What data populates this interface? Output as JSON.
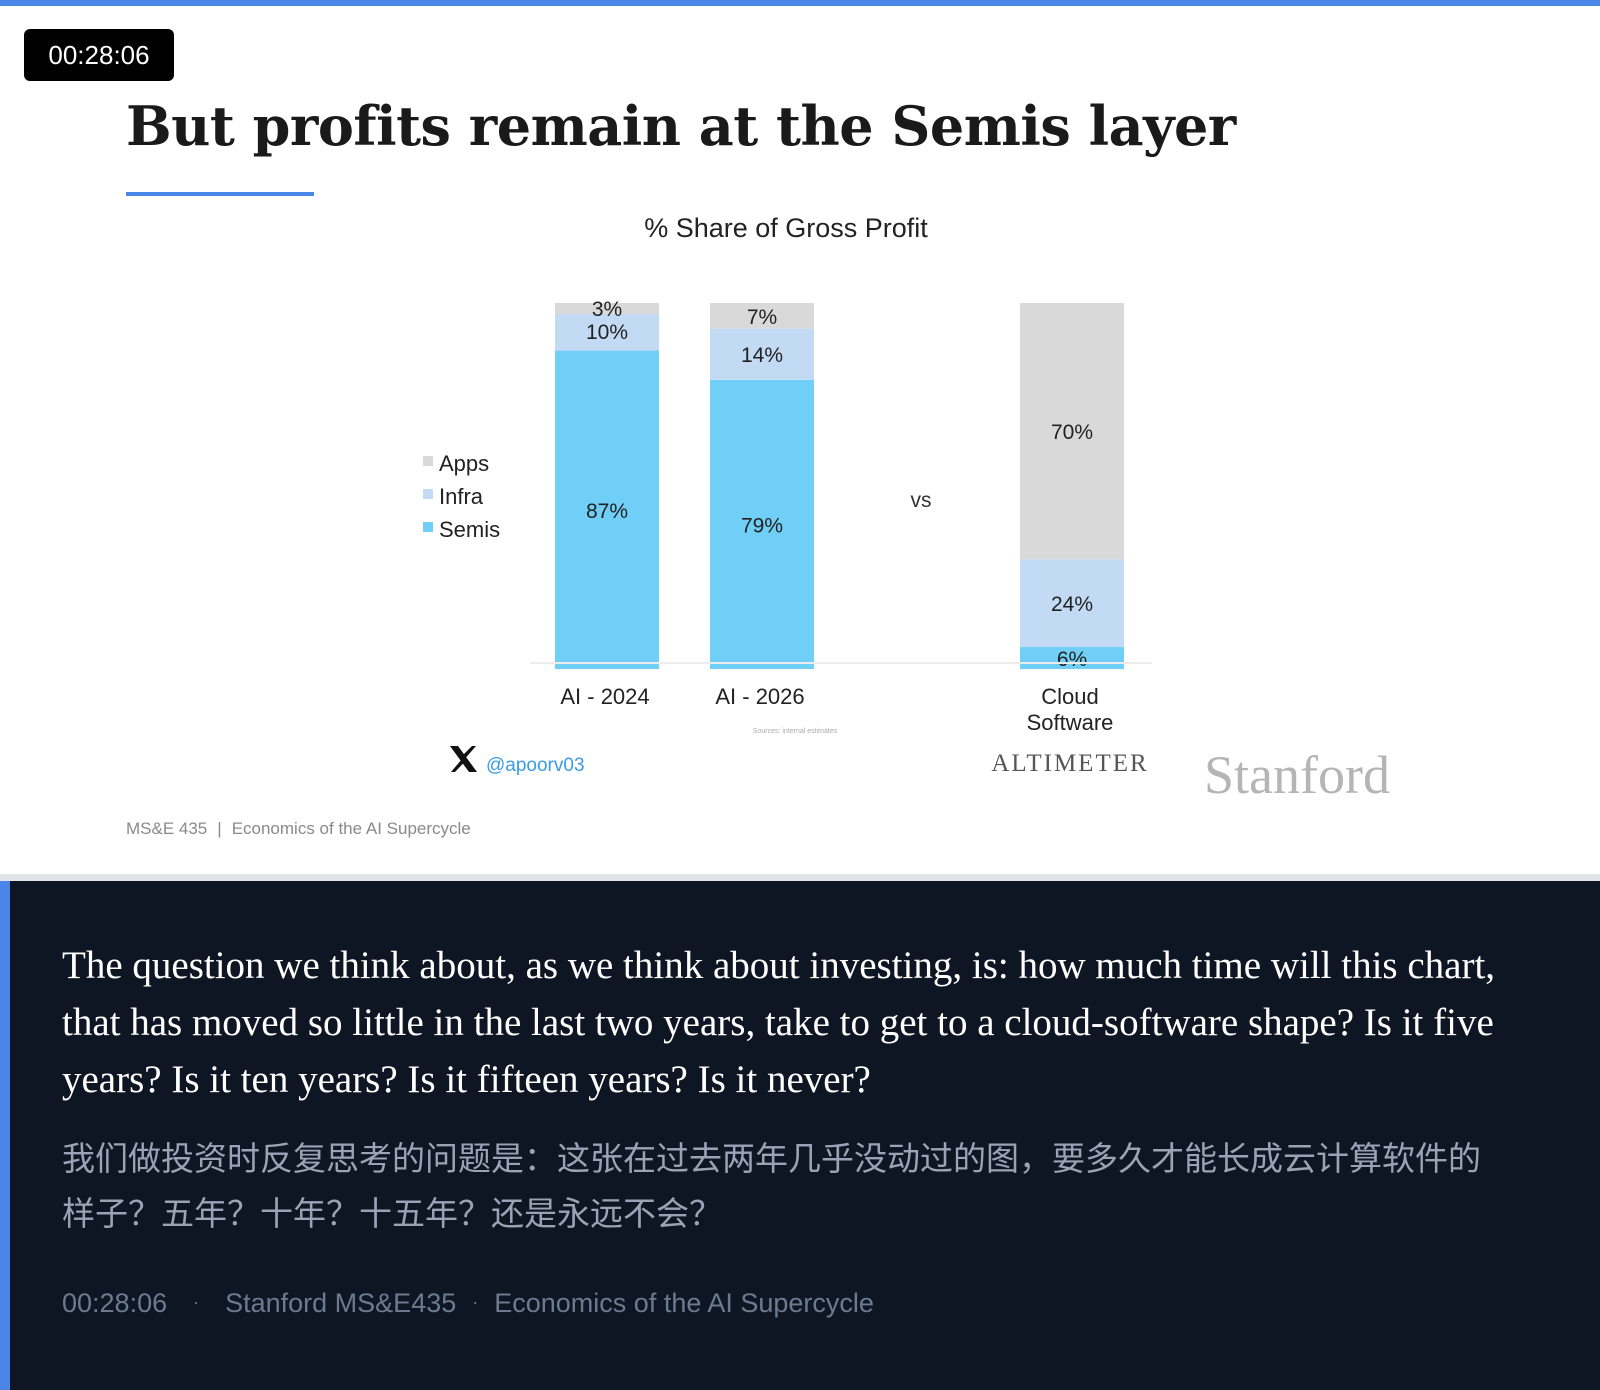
{
  "timestamp": "00:28:06",
  "slide": {
    "title": "But profits remain at the Semis layer",
    "stanford_logo": "Stanford",
    "course_code": "MS&E 435",
    "footer_separator": "|",
    "course_name": "Economics of the AI Supercycle"
  },
  "colors": {
    "accent": "#4a86e8",
    "semis": "#6fcff6",
    "infra": "#c3daf4",
    "apps": "#d9d9d9",
    "caption_bg": "#0f1623"
  },
  "chart_data": {
    "type": "bar",
    "stacked": true,
    "title": "% Share of Gross Profit",
    "categories": [
      "AI - 2024",
      "AI - 2026",
      "Cloud Software"
    ],
    "series": [
      {
        "name": "Semis",
        "values": [
          87,
          79,
          6
        ]
      },
      {
        "name": "Infra",
        "values": [
          10,
          14,
          24
        ]
      },
      {
        "name": "Apps",
        "values": [
          3,
          7,
          70
        ]
      }
    ],
    "legend_order": [
      "Apps",
      "Infra",
      "Semis"
    ],
    "legend_position": "left",
    "ylim": [
      0,
      100
    ],
    "grid": false,
    "separator_label": "vs",
    "source_note": "Sources: internal estimates",
    "twitter_handle": "@apoorv03",
    "twitter_icon": "x-logo-icon",
    "brand": "ALTIMETER"
  },
  "caption": {
    "english": "The question we think about, as we think about investing, is: how much time will this chart, that has moved so little in the last two years, take to get to a cloud-software shape? Is it five years? Is it ten years? Is it fifteen years? Is it never?",
    "chinese": "我们做投资时反复思考的问题是：这张在过去两年几乎没动过的图，要多久才能长成云计算软件的样子？五年？十年？十五年？还是永远不会？",
    "meta_time": "00:28:06",
    "meta_course": "Stanford MS&E435",
    "meta_topic": "Economics of the AI Supercycle",
    "meta_separator": "·"
  }
}
